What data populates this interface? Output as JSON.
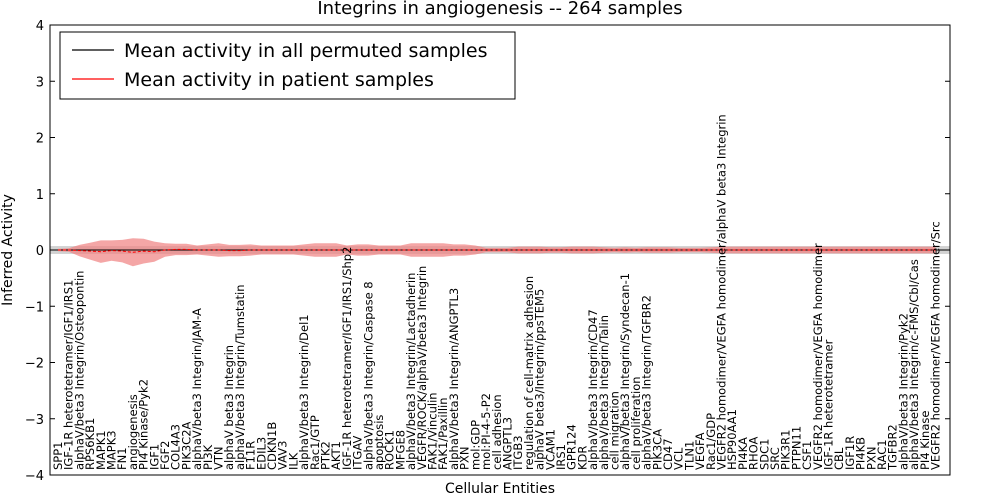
{
  "chart_data": {
    "type": "line",
    "title": "Integrins in angiogenesis -- 264 samples",
    "xlabel": "Cellular Entities",
    "ylabel": "Inferred Activity",
    "ylim": [
      -4,
      4
    ],
    "yticks": [
      "4",
      "3",
      "2",
      "1",
      "0",
      "−1",
      "−2",
      "−3",
      "−4"
    ],
    "legend_position": "top-left",
    "colors": {
      "permuted": "#000000",
      "patient": "#ff0000",
      "patient_band": "#f08080",
      "permuted_band": "#bfbfbf"
    },
    "series": [
      {
        "name": "Mean activity in all permuted samples",
        "key": "permuted"
      },
      {
        "name": "Mean activity in patient samples",
        "key": "patient"
      }
    ],
    "entities": [
      "SPP1",
      "IGF-1R heterotetramer/IGF1/IRS1",
      "alphaV/beta3 Integrin/Osteopontin",
      "RPS6KB1",
      "MAPK1",
      "MAPK3",
      "FN1",
      "angiogenesis",
      "PI4 Kinase/Pyk2",
      "IGF1",
      "FGF2",
      "COL4A3",
      "PIK3C2A",
      "alphaV/beta3 Integrin/JAM-A",
      "PI3K",
      "VTN",
      "alphaV beta3 Integrin",
      "alphaV/beta3 Integrin/Tumstatin",
      "F11R",
      "EDIL3",
      "CDKN1B",
      "VAV3",
      "ILK",
      "alphaV/beta3 Integrin/Del1",
      "Rac1/GTP",
      "PTK2",
      "AKT1",
      "IGF-1R heterotetramer/IGF1/IRS1/Shp2",
      "ITGAV",
      "alphaV/beta3 Integrin/Caspase 8",
      "apoptosis",
      "ROCK1",
      "MFGE8",
      "alphaV/beta3 Integrin/Lactadherin",
      "VEGFR/ROCK/alphaV/beta3 Integrin",
      "FAK1/Vinculin",
      "FAK1/Paxillin",
      "alphaV/beta3 Integrin/ANGPTL3",
      "PXN",
      "mol:GDP",
      "mol:PI-4-5-P2",
      "cell adhesion",
      "ANGPTL3",
      "ITGB3",
      "regulation of cell-matrix adhesion",
      "alphaV beta3/Integrin/ppsTEM5",
      "VCAM1",
      "IRS1",
      "GPR124",
      "KDR",
      "alphaV/beta3 Integrin/CD47",
      "alphaV/beta3 Integrin/Talin",
      "cell migration",
      "alphaV/beta3 Integrin/Syndecan-1",
      "cell proliferation",
      "alphaV/beta3 Integrin/TGFBR2",
      "PIK3CA",
      "CD47",
      "VCL",
      "TLN1",
      "VEGFA",
      "Rac1/GDP",
      "VEGFR2 homodimer/VEGFA homodimer/alphaV beta3 Integrin",
      "HSP90AA1",
      "PI4KA",
      "RHOA",
      "SDC1",
      "SRC",
      "PIK3R1",
      "PTPN11",
      "CSF1",
      "VEGFR2 homodimer/VEGFA homodimer",
      "IGF-1R heterotetramer",
      "CBL",
      "IGF1R",
      "PI4KB",
      "PXN",
      "RAC1",
      "TGFBR2",
      "alphaV/beta3 Integrin/Pyk2",
      "alphaV/beta3 Integrin/c-FMS/Cbl/Cas",
      "PI4 Kinase",
      "VEGFR2 homodimer/VEGFA homodimer/Src"
    ],
    "x": [
      0,
      82
    ],
    "permuted_mean": 0.0,
    "permuted_band": [
      -0.07,
      0.07
    ],
    "patient_mean": [
      0,
      0,
      -0.01,
      -0.02,
      -0.03,
      -0.01,
      -0.02,
      -0.04,
      -0.02,
      -0.03,
      0,
      0.01,
      0.01,
      0,
      0,
      0,
      -0.01,
      -0.01,
      0,
      0,
      0,
      0,
      0,
      0,
      0,
      0,
      0,
      0,
      0,
      0,
      0,
      0,
      0,
      0,
      0,
      0,
      0,
      0,
      0,
      0,
      0,
      0,
      0,
      0,
      0,
      0,
      0,
      0,
      0,
      0,
      0,
      0,
      0,
      0,
      0,
      0,
      0,
      0,
      0,
      0,
      0,
      0,
      0,
      0,
      0,
      0,
      0,
      0,
      0,
      0,
      0,
      0,
      0,
      0,
      0,
      0,
      0,
      0,
      0,
      0,
      0,
      0,
      0
    ],
    "patient_band_halfwidth": [
      0.02,
      0.03,
      0.1,
      0.15,
      0.2,
      0.18,
      0.2,
      0.25,
      0.22,
      0.18,
      0.12,
      0.1,
      0.1,
      0.08,
      0.1,
      0.12,
      0.1,
      0.1,
      0.1,
      0.08,
      0.08,
      0.08,
      0.08,
      0.1,
      0.12,
      0.12,
      0.12,
      0.08,
      0.1,
      0.1,
      0.08,
      0.08,
      0.08,
      0.12,
      0.12,
      0.12,
      0.12,
      0.1,
      0.1,
      0.08,
      0.04,
      0.04,
      0.04,
      0.06,
      0.06,
      0.06,
      0.05,
      0.05,
      0.06,
      0.06,
      0.06,
      0.05,
      0.04,
      0.05,
      0.04,
      0.05,
      0.05,
      0.05,
      0.04,
      0.04,
      0.04,
      0.05,
      0.06,
      0.06,
      0.06,
      0.06,
      0.06,
      0.06,
      0.06,
      0.06,
      0.06,
      0.06,
      0.06,
      0.06,
      0.06,
      0.06,
      0.06,
      0.06,
      0.06,
      0.06,
      0.06,
      0.06,
      0.06
    ]
  }
}
